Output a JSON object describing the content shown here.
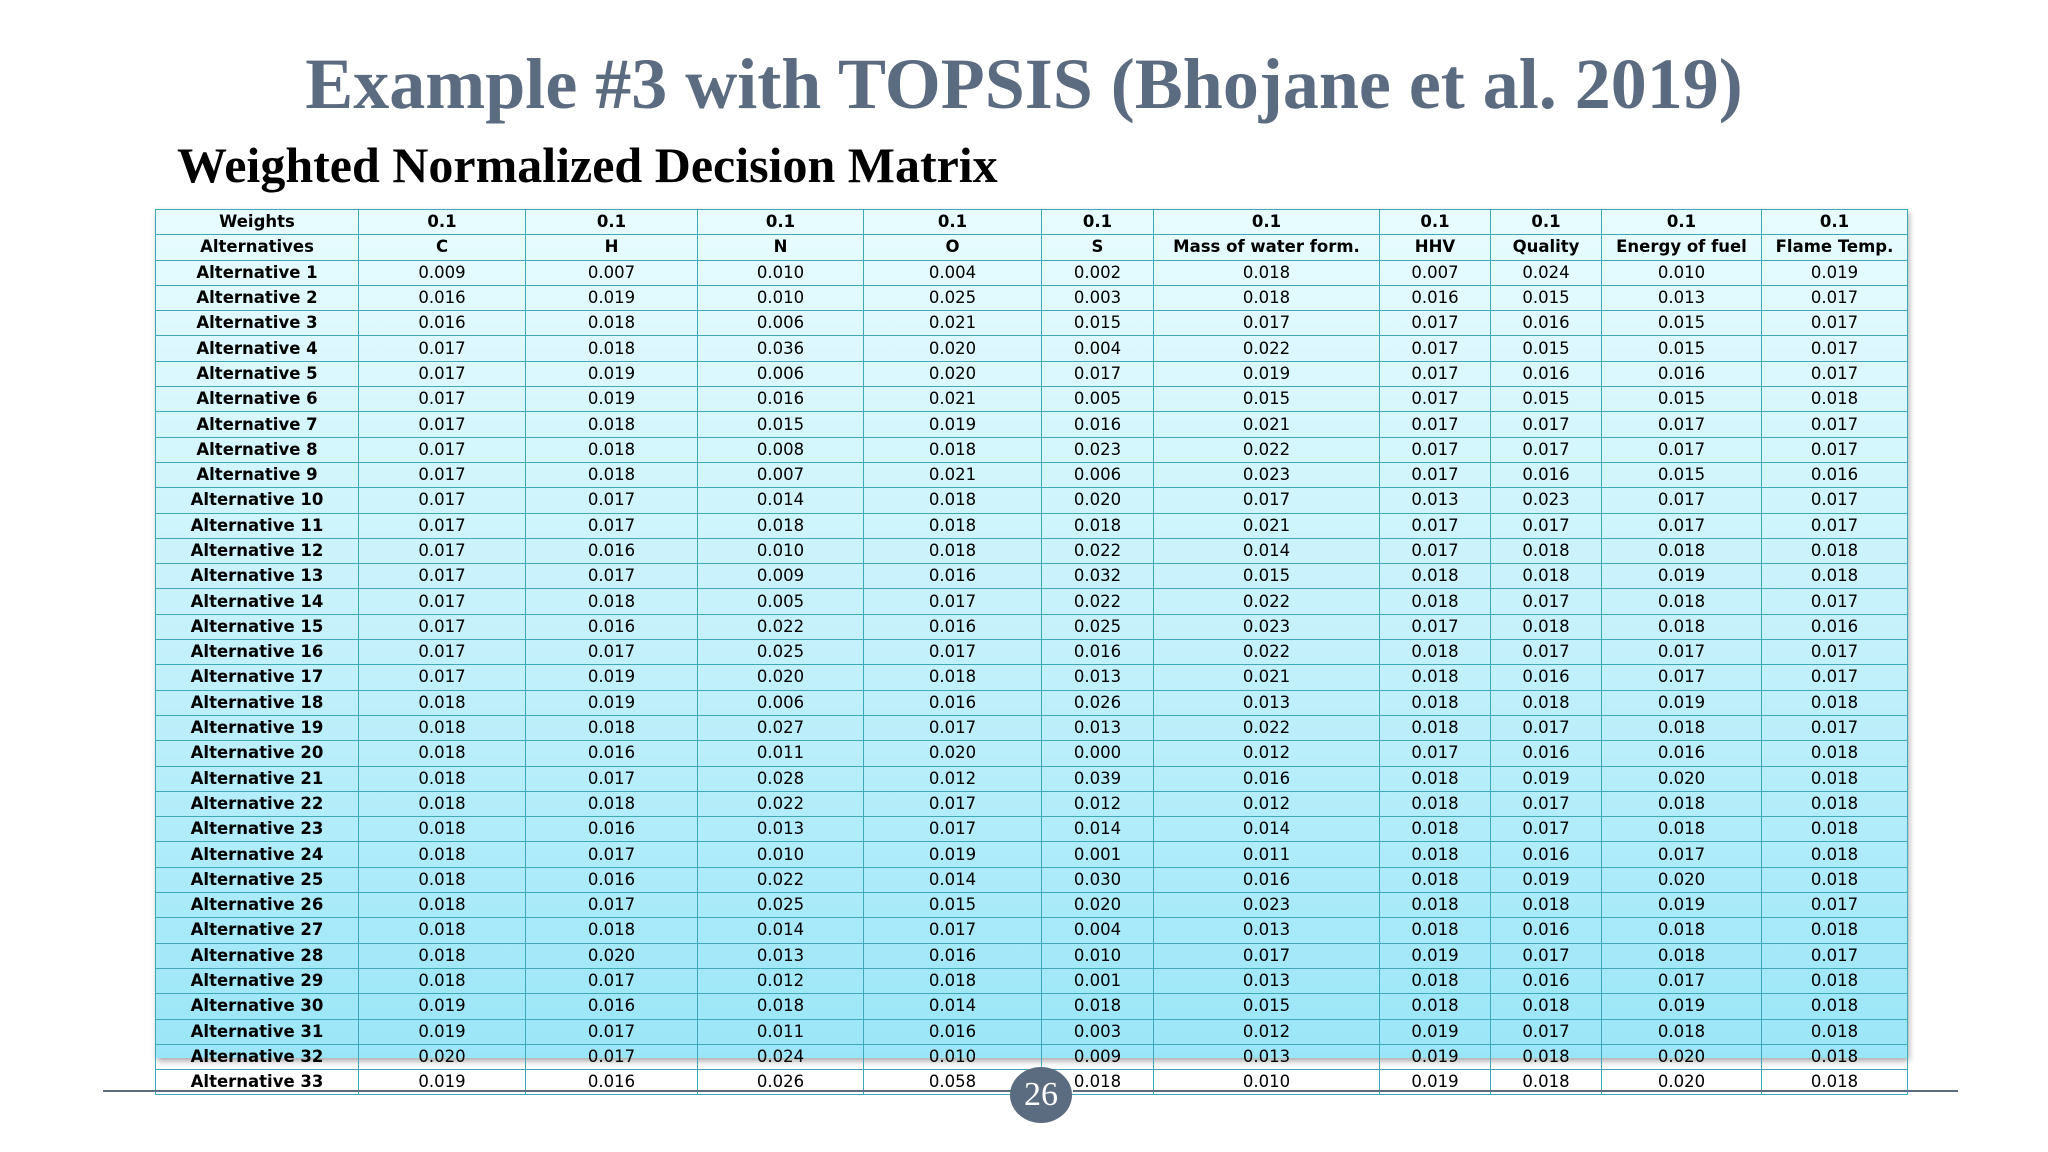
{
  "title": "Example #3 with TOPSIS (Bhojane et al. 2019)",
  "subtitle": "Weighted Normalized Decision Matrix",
  "page_number": "26",
  "matrix": {
    "weights_label": "Weights",
    "weights": [
      "0.1",
      "0.1",
      "0.1",
      "0.1",
      "0.1",
      "0.1",
      "0.1",
      "0.1",
      "0.1",
      "0.1"
    ],
    "alternatives_label": "Alternatives",
    "columns": [
      "C",
      "H",
      "N",
      "O",
      "S",
      "Mass of water form.",
      "HHV",
      "Quality",
      "Energy of fuel",
      "Flame Temp."
    ],
    "rows": [
      {
        "label": "Alternative 1",
        "values": [
          "0.009",
          "0.007",
          "0.010",
          "0.004",
          "0.002",
          "0.018",
          "0.007",
          "0.024",
          "0.010",
          "0.019"
        ]
      },
      {
        "label": "Alternative 2",
        "values": [
          "0.016",
          "0.019",
          "0.010",
          "0.025",
          "0.003",
          "0.018",
          "0.016",
          "0.015",
          "0.013",
          "0.017"
        ]
      },
      {
        "label": "Alternative 3",
        "values": [
          "0.016",
          "0.018",
          "0.006",
          "0.021",
          "0.015",
          "0.017",
          "0.017",
          "0.016",
          "0.015",
          "0.017"
        ]
      },
      {
        "label": "Alternative 4",
        "values": [
          "0.017",
          "0.018",
          "0.036",
          "0.020",
          "0.004",
          "0.022",
          "0.017",
          "0.015",
          "0.015",
          "0.017"
        ]
      },
      {
        "label": "Alternative 5",
        "values": [
          "0.017",
          "0.019",
          "0.006",
          "0.020",
          "0.017",
          "0.019",
          "0.017",
          "0.016",
          "0.016",
          "0.017"
        ]
      },
      {
        "label": "Alternative 6",
        "values": [
          "0.017",
          "0.019",
          "0.016",
          "0.021",
          "0.005",
          "0.015",
          "0.017",
          "0.015",
          "0.015",
          "0.018"
        ]
      },
      {
        "label": "Alternative 7",
        "values": [
          "0.017",
          "0.018",
          "0.015",
          "0.019",
          "0.016",
          "0.021",
          "0.017",
          "0.017",
          "0.017",
          "0.017"
        ]
      },
      {
        "label": "Alternative 8",
        "values": [
          "0.017",
          "0.018",
          "0.008",
          "0.018",
          "0.023",
          "0.022",
          "0.017",
          "0.017",
          "0.017",
          "0.017"
        ]
      },
      {
        "label": "Alternative 9",
        "values": [
          "0.017",
          "0.018",
          "0.007",
          "0.021",
          "0.006",
          "0.023",
          "0.017",
          "0.016",
          "0.015",
          "0.016"
        ]
      },
      {
        "label": "Alternative 10",
        "values": [
          "0.017",
          "0.017",
          "0.014",
          "0.018",
          "0.020",
          "0.017",
          "0.013",
          "0.023",
          "0.017",
          "0.017"
        ]
      },
      {
        "label": "Alternative 11",
        "values": [
          "0.017",
          "0.017",
          "0.018",
          "0.018",
          "0.018",
          "0.021",
          "0.017",
          "0.017",
          "0.017",
          "0.017"
        ]
      },
      {
        "label": "Alternative 12",
        "values": [
          "0.017",
          "0.016",
          "0.010",
          "0.018",
          "0.022",
          "0.014",
          "0.017",
          "0.018",
          "0.018",
          "0.018"
        ]
      },
      {
        "label": "Alternative 13",
        "values": [
          "0.017",
          "0.017",
          "0.009",
          "0.016",
          "0.032",
          "0.015",
          "0.018",
          "0.018",
          "0.019",
          "0.018"
        ]
      },
      {
        "label": "Alternative 14",
        "values": [
          "0.017",
          "0.018",
          "0.005",
          "0.017",
          "0.022",
          "0.022",
          "0.018",
          "0.017",
          "0.018",
          "0.017"
        ]
      },
      {
        "label": "Alternative 15",
        "values": [
          "0.017",
          "0.016",
          "0.022",
          "0.016",
          "0.025",
          "0.023",
          "0.017",
          "0.018",
          "0.018",
          "0.016"
        ]
      },
      {
        "label": "Alternative 16",
        "values": [
          "0.017",
          "0.017",
          "0.025",
          "0.017",
          "0.016",
          "0.022",
          "0.018",
          "0.017",
          "0.017",
          "0.017"
        ]
      },
      {
        "label": "Alternative 17",
        "values": [
          "0.017",
          "0.019",
          "0.020",
          "0.018",
          "0.013",
          "0.021",
          "0.018",
          "0.016",
          "0.017",
          "0.017"
        ]
      },
      {
        "label": "Alternative 18",
        "values": [
          "0.018",
          "0.019",
          "0.006",
          "0.016",
          "0.026",
          "0.013",
          "0.018",
          "0.018",
          "0.019",
          "0.018"
        ]
      },
      {
        "label": "Alternative 19",
        "values": [
          "0.018",
          "0.018",
          "0.027",
          "0.017",
          "0.013",
          "0.022",
          "0.018",
          "0.017",
          "0.018",
          "0.017"
        ]
      },
      {
        "label": "Alternative 20",
        "values": [
          "0.018",
          "0.016",
          "0.011",
          "0.020",
          "0.000",
          "0.012",
          "0.017",
          "0.016",
          "0.016",
          "0.018"
        ]
      },
      {
        "label": "Alternative 21",
        "values": [
          "0.018",
          "0.017",
          "0.028",
          "0.012",
          "0.039",
          "0.016",
          "0.018",
          "0.019",
          "0.020",
          "0.018"
        ]
      },
      {
        "label": "Alternative 22",
        "values": [
          "0.018",
          "0.018",
          "0.022",
          "0.017",
          "0.012",
          "0.012",
          "0.018",
          "0.017",
          "0.018",
          "0.018"
        ]
      },
      {
        "label": "Alternative 23",
        "values": [
          "0.018",
          "0.016",
          "0.013",
          "0.017",
          "0.014",
          "0.014",
          "0.018",
          "0.017",
          "0.018",
          "0.018"
        ]
      },
      {
        "label": "Alternative 24",
        "values": [
          "0.018",
          "0.017",
          "0.010",
          "0.019",
          "0.001",
          "0.011",
          "0.018",
          "0.016",
          "0.017",
          "0.018"
        ]
      },
      {
        "label": "Alternative 25",
        "values": [
          "0.018",
          "0.016",
          "0.022",
          "0.014",
          "0.030",
          "0.016",
          "0.018",
          "0.019",
          "0.020",
          "0.018"
        ]
      },
      {
        "label": "Alternative 26",
        "values": [
          "0.018",
          "0.017",
          "0.025",
          "0.015",
          "0.020",
          "0.023",
          "0.018",
          "0.018",
          "0.019",
          "0.017"
        ]
      },
      {
        "label": "Alternative 27",
        "values": [
          "0.018",
          "0.018",
          "0.014",
          "0.017",
          "0.004",
          "0.013",
          "0.018",
          "0.016",
          "0.018",
          "0.018"
        ]
      },
      {
        "label": "Alternative 28",
        "values": [
          "0.018",
          "0.020",
          "0.013",
          "0.016",
          "0.010",
          "0.017",
          "0.019",
          "0.017",
          "0.018",
          "0.017"
        ]
      },
      {
        "label": "Alternative 29",
        "values": [
          "0.018",
          "0.017",
          "0.012",
          "0.018",
          "0.001",
          "0.013",
          "0.018",
          "0.016",
          "0.017",
          "0.018"
        ]
      },
      {
        "label": "Alternative 30",
        "values": [
          "0.019",
          "0.016",
          "0.018",
          "0.014",
          "0.018",
          "0.015",
          "0.018",
          "0.018",
          "0.019",
          "0.018"
        ]
      },
      {
        "label": "Alternative 31",
        "values": [
          "0.019",
          "0.017",
          "0.011",
          "0.016",
          "0.003",
          "0.012",
          "0.019",
          "0.017",
          "0.018",
          "0.018"
        ]
      },
      {
        "label": "Alternative 32",
        "values": [
          "0.020",
          "0.017",
          "0.024",
          "0.010",
          "0.009",
          "0.013",
          "0.019",
          "0.018",
          "0.020",
          "0.018"
        ]
      },
      {
        "label": "Alternative 33",
        "values": [
          "0.019",
          "0.016",
          "0.026",
          "0.058",
          "0.018",
          "0.010",
          "0.019",
          "0.018",
          "0.020",
          "0.018"
        ]
      }
    ]
  }
}
